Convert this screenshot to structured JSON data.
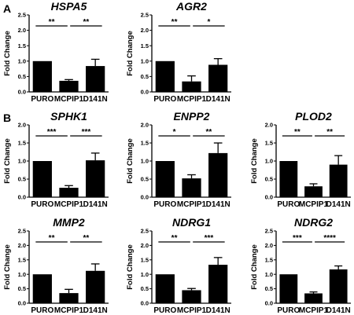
{
  "panels": [
    {
      "letter": "A"
    },
    {
      "letter": "B"
    }
  ],
  "chart_data": [
    {
      "type": "bar",
      "title": "HSPA5",
      "ylabel": "Fold Change",
      "categories": [
        "PURO",
        "MCPIP1",
        "D141N"
      ],
      "values": [
        1.0,
        0.36,
        0.84
      ],
      "errors": [
        0.0,
        0.04,
        0.22
      ],
      "ylim": [
        0,
        2.5
      ],
      "yticks": [
        "0.0",
        "0.5",
        "1.0",
        "1.5",
        "2.0",
        "2.5"
      ],
      "significance": [
        "**",
        "**"
      ]
    },
    {
      "type": "bar",
      "title": "AGR2",
      "ylabel": "Fold Change",
      "categories": [
        "PURO",
        "MCPIP1",
        "D141N"
      ],
      "values": [
        1.0,
        0.34,
        0.88
      ],
      "errors": [
        0.0,
        0.18,
        0.2
      ],
      "ylim": [
        0,
        2.5
      ],
      "yticks": [
        "0.0",
        "0.5",
        "1.0",
        "1.5",
        "2.0",
        "2.5"
      ],
      "significance": [
        "**",
        "*"
      ]
    },
    {
      "type": "bar",
      "title": "SPHK1",
      "ylabel": "Fold Change",
      "categories": [
        "PURO",
        "MCPIP1",
        "D141N"
      ],
      "values": [
        1.0,
        0.26,
        1.02
      ],
      "errors": [
        0.0,
        0.06,
        0.2
      ],
      "ylim": [
        0,
        2.0
      ],
      "yticks": [
        "0.0",
        "0.5",
        "1.0",
        "1.5",
        "2.0"
      ],
      "significance": [
        "***",
        "***"
      ]
    },
    {
      "type": "bar",
      "title": "ENPP2",
      "ylabel": "Fold Change",
      "categories": [
        "PURO",
        "MCPIP1",
        "D141N"
      ],
      "values": [
        1.0,
        0.52,
        1.22
      ],
      "errors": [
        0.0,
        0.1,
        0.28
      ],
      "ylim": [
        0,
        2.0
      ],
      "yticks": [
        "0.0",
        "0.5",
        "1.0",
        "1.5",
        "2.0"
      ],
      "significance": [
        "*",
        "**"
      ]
    },
    {
      "type": "bar",
      "title": "PLOD2",
      "ylabel": "Fold Change",
      "categories": [
        "PURO",
        "MCPIP1",
        "D141N"
      ],
      "values": [
        1.0,
        0.3,
        0.9
      ],
      "errors": [
        0.0,
        0.07,
        0.25
      ],
      "ylim": [
        0,
        2.0
      ],
      "yticks": [
        "0.0",
        "0.5",
        "1.0",
        "1.5",
        "2.0"
      ],
      "significance": [
        "**",
        "**"
      ]
    },
    {
      "type": "bar",
      "title": "MMP2",
      "ylabel": "Fold Change",
      "categories": [
        "PURO",
        "MCPIP1",
        "D141N"
      ],
      "values": [
        1.0,
        0.35,
        1.12
      ],
      "errors": [
        0.0,
        0.13,
        0.24
      ],
      "ylim": [
        0,
        2.5
      ],
      "yticks": [
        "0.0",
        "0.5",
        "1.0",
        "1.5",
        "2.0",
        "2.5"
      ],
      "significance": [
        "**",
        "**"
      ]
    },
    {
      "type": "bar",
      "title": "NDRG1",
      "ylabel": "Fold Change",
      "categories": [
        "PURO",
        "MCPIP1",
        "D141N"
      ],
      "values": [
        1.0,
        0.45,
        1.33
      ],
      "errors": [
        0.0,
        0.06,
        0.25
      ],
      "ylim": [
        0,
        2.5
      ],
      "yticks": [
        "0.0",
        "0.5",
        "1.0",
        "1.5",
        "2.0",
        "2.5"
      ],
      "significance": [
        "**",
        "***"
      ]
    },
    {
      "type": "bar",
      "title": "NDRG2",
      "ylabel": "Fold Change",
      "categories": [
        "PURO",
        "MCPIP1",
        "D141N"
      ],
      "values": [
        1.0,
        0.34,
        1.17
      ],
      "errors": [
        0.0,
        0.05,
        0.12
      ],
      "ylim": [
        0,
        2.5
      ],
      "yticks": [
        "0.0",
        "0.5",
        "1.0",
        "1.5",
        "2.0",
        "2.5"
      ],
      "significance": [
        "***",
        "****"
      ]
    }
  ]
}
